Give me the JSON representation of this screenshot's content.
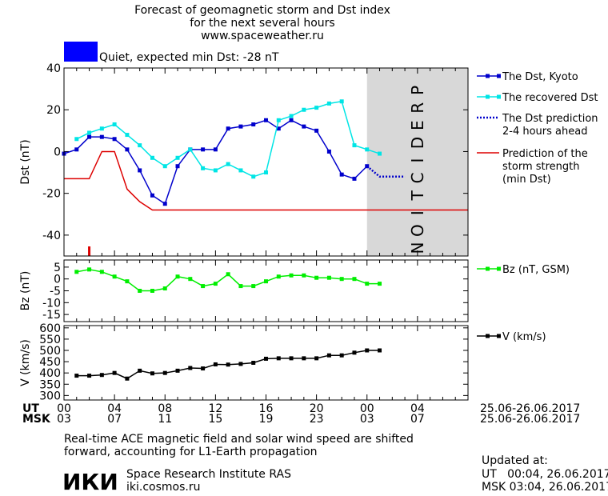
{
  "title_lines": [
    "Forecast of geomagnetic storm and Dst index",
    "for the next several hours",
    "www.spaceweather.ru"
  ],
  "status": {
    "text": "Quiet, expected min Dst: -28 nT",
    "color": "#0000ff"
  },
  "time_axis": {
    "ut_label": "UT",
    "msk_label": "MSK",
    "ut_ticks": [
      "00",
      "04",
      "08",
      "12",
      "16",
      "20",
      "00",
      "04"
    ],
    "msk_ticks": [
      "03",
      "07",
      "11",
      "15",
      "19",
      "23",
      "03",
      "07"
    ],
    "ut_range": "25.06-26.06.2017",
    "msk_range": "25.06-26.06.2017",
    "hours_range": [
      0,
      32
    ],
    "prediction_start": 24,
    "prediction_word": "PREDICTION"
  },
  "chart_data": [
    {
      "type": "line",
      "ylabel": "Dst (nT)",
      "ylim": [
        -50,
        40
      ],
      "yticks": [
        -40,
        -20,
        0,
        20,
        40
      ],
      "series": [
        {
          "name": "The Dst, Kyoto",
          "color": "#0000cc",
          "x": [
            0,
            1,
            2,
            3,
            4,
            5,
            6,
            7,
            8,
            9,
            10,
            11,
            12,
            13,
            14,
            15,
            16,
            17,
            18,
            19,
            20,
            21,
            22,
            23,
            24
          ],
          "y": [
            -1,
            1,
            7,
            7,
            6,
            1,
            -9,
            -21,
            -25,
            -7,
            1,
            1,
            1,
            11,
            12,
            13,
            15,
            11,
            15,
            12,
            10,
            0,
            -11,
            -13,
            -7
          ]
        },
        {
          "name": "The recovered Dst",
          "color": "#00e5e5",
          "x": [
            1,
            2,
            3,
            4,
            5,
            6,
            7,
            8,
            9,
            10,
            11,
            12,
            13,
            14,
            15,
            16,
            17,
            18,
            19,
            20,
            21,
            22,
            23,
            24,
            25
          ],
          "y": [
            6,
            9,
            11,
            13,
            8,
            3,
            -3,
            -7,
            -3,
            1,
            -8,
            -9,
            -6,
            -9,
            -12,
            -10,
            15,
            17,
            20,
            21,
            23,
            24,
            3,
            1,
            -1
          ]
        },
        {
          "name": "The Dst prediction\n2-4 hours ahead",
          "color": "#0000cc",
          "x": [
            24,
            25,
            26,
            27
          ],
          "y": [
            -7,
            -12,
            -12,
            -12
          ]
        },
        {
          "name": "Prediction of the\nstorm strength\n(min Dst)",
          "color": "#dd0000",
          "x": [
            0,
            2,
            3,
            4,
            5,
            6,
            7,
            32
          ],
          "y": [
            -13,
            -13,
            0,
            0,
            -18,
            -24,
            -28,
            -28
          ]
        }
      ],
      "marker": {
        "x": 2,
        "color": "#dd0000"
      }
    },
    {
      "type": "line",
      "ylabel": "Bz (nT)",
      "ylim": [
        -18,
        8
      ],
      "yticks": [
        5,
        0,
        -5,
        -10,
        -15
      ],
      "series": [
        {
          "name": "Bz (nT, GSM)",
          "color": "#00ee00",
          "x": [
            1,
            2,
            3,
            4,
            5,
            6,
            7,
            8,
            9,
            10,
            11,
            12,
            13,
            14,
            15,
            16,
            17,
            18,
            19,
            20,
            21,
            22,
            23,
            24,
            25
          ],
          "y": [
            3,
            4,
            3,
            1,
            -1,
            -5,
            -5,
            -4,
            1,
            0,
            -3,
            -2,
            2,
            -3,
            -3,
            -1,
            1,
            1.5,
            1.5,
            0.5,
            0.5,
            0,
            0,
            -2,
            -2
          ]
        }
      ]
    },
    {
      "type": "line",
      "ylabel": "V (km/s)",
      "ylim": [
        280,
        610
      ],
      "yticks": [
        600,
        550,
        500,
        450,
        400,
        350,
        300
      ],
      "series": [
        {
          "name": "V (km/s)",
          "color": "#000000",
          "x": [
            1,
            2,
            3,
            4,
            5,
            6,
            7,
            8,
            9,
            10,
            11,
            12,
            13,
            14,
            15,
            16,
            17,
            18,
            19,
            20,
            21,
            22,
            23,
            24,
            25
          ],
          "y": [
            388,
            388,
            391,
            400,
            375,
            410,
            398,
            400,
            410,
            422,
            420,
            438,
            437,
            440,
            445,
            463,
            465,
            465,
            465,
            465,
            478,
            478,
            490,
            500,
            500
          ]
        }
      ]
    }
  ],
  "note_lines": [
    "Real-time ACE magnetic field and solar wind speed are shifted",
    "forward, accounting for L1-Earth propagation"
  ],
  "footer": {
    "logo_text": "ИКИ",
    "org_name": "Space Research Institute RAS",
    "org_url": "iki.cosmos.ru",
    "updated_label": "Updated at:",
    "updated_ut": "UT   00:04, 26.06.2017",
    "updated_msk": "MSK 03:04, 26.06.2017"
  }
}
